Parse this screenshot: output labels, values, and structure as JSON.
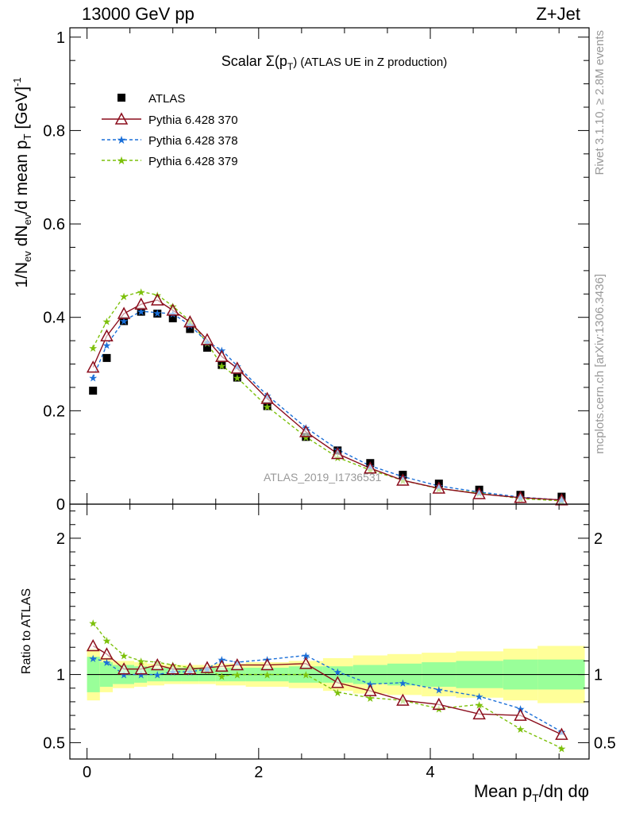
{
  "header": {
    "left": "13000 GeV pp",
    "right": "Z+Jet"
  },
  "side": {
    "rivet": "Rivet 3.1.10, ≥ 2.8M events",
    "mcplots": "mcplots.cern.ch [arXiv:1306.3436]"
  },
  "colors": {
    "atlas": "#000000",
    "p370": "#8b0d1c",
    "p378": "#1a6fd8",
    "p379": "#7cc00a",
    "band_inner": "#99ff99",
    "band_outer": "#ffff99"
  },
  "chart_data": [
    {
      "type": "scatter",
      "title": "Scalar Σ(pT) (ATLAS UE in Z production)",
      "title_parts": {
        "prefix": "Scalar Σ(p",
        "sub": "T",
        "suffix": ") (ATLAS UE in Z production)"
      },
      "ylabel": "1/Nev dNev/d mean pT [GeV]-1",
      "xlabel": "Mean pT/dη dφ",
      "analysis_label": "ATLAS_2019_I1736531",
      "xlim": [
        -0.2,
        5.85
      ],
      "ylim": [
        0,
        1.02
      ],
      "yticks": [
        "0",
        "0.2",
        "0.4",
        "0.6",
        "0.8",
        "1"
      ],
      "legend": [
        "ATLAS",
        "Pythia 6.428 370",
        "Pythia 6.428 378",
        "Pythia 6.428 379"
      ],
      "x": [
        0.07,
        0.23,
        0.43,
        0.63,
        0.82,
        1.0,
        1.2,
        1.4,
        1.57,
        1.75,
        2.1,
        2.55,
        2.92,
        3.3,
        3.68,
        4.1,
        4.57,
        5.05,
        5.53
      ],
      "series": [
        {
          "name": "ATLAS",
          "values": [
            0.243,
            0.313,
            0.392,
            0.412,
            0.408,
            0.398,
            0.375,
            0.335,
            0.298,
            0.271,
            0.21,
            0.144,
            0.115,
            0.088,
            0.063,
            0.044,
            0.031,
            0.02,
            0.016
          ]
        },
        {
          "name": "Pythia 6.428 370",
          "values": [
            0.293,
            0.36,
            0.408,
            0.428,
            0.437,
            0.415,
            0.39,
            0.352,
            0.316,
            0.291,
            0.226,
            0.155,
            0.108,
            0.077,
            0.051,
            0.034,
            0.022,
            0.014,
            0.009
          ]
        },
        {
          "name": "Pythia 6.428 378",
          "values": [
            0.271,
            0.341,
            0.393,
            0.413,
            0.41,
            0.408,
            0.383,
            0.347,
            0.33,
            0.296,
            0.233,
            0.164,
            0.117,
            0.082,
            0.059,
            0.039,
            0.026,
            0.015,
            0.009
          ]
        },
        {
          "name": "Pythia 6.428 379",
          "values": [
            0.335,
            0.392,
            0.445,
            0.455,
            0.448,
            0.424,
            0.392,
            0.345,
            0.297,
            0.271,
            0.209,
            0.144,
            0.1,
            0.073,
            0.051,
            0.033,
            0.024,
            0.012,
            0.007
          ]
        }
      ]
    },
    {
      "type": "line",
      "ylabel": "Ratio to ATLAS",
      "xlabel": "Mean pT/dη dφ",
      "xlim": [
        -0.2,
        5.85
      ],
      "ylim": [
        0.38,
        2.25
      ],
      "yticks": [
        "0.5",
        "1",
        "2"
      ],
      "xticks": [
        "0",
        "2",
        "4"
      ],
      "x": [
        0.07,
        0.23,
        0.43,
        0.63,
        0.82,
        1.0,
        1.2,
        1.4,
        1.57,
        1.75,
        2.1,
        2.55,
        2.92,
        3.3,
        3.68,
        4.1,
        4.57,
        5.05,
        5.53
      ],
      "x_edges": [
        0.0,
        0.15,
        0.3,
        0.55,
        0.7,
        0.9,
        1.1,
        1.3,
        1.5,
        1.65,
        1.85,
        2.35,
        2.75,
        3.1,
        3.5,
        3.9,
        4.3,
        4.85,
        5.25,
        5.8
      ],
      "band_inner": [
        0.13,
        0.09,
        0.07,
        0.06,
        0.05,
        0.05,
        0.05,
        0.05,
        0.05,
        0.05,
        0.05,
        0.06,
        0.06,
        0.07,
        0.08,
        0.09,
        0.1,
        0.11,
        0.11
      ],
      "band_outer": [
        0.19,
        0.13,
        0.1,
        0.09,
        0.08,
        0.07,
        0.07,
        0.07,
        0.08,
        0.08,
        0.09,
        0.1,
        0.12,
        0.14,
        0.15,
        0.16,
        0.17,
        0.19,
        0.21
      ],
      "series": [
        {
          "name": "Pythia 6.428 370",
          "values": [
            1.21,
            1.15,
            1.04,
            1.04,
            1.07,
            1.04,
            1.04,
            1.05,
            1.06,
            1.07,
            1.07,
            1.08,
            0.94,
            0.88,
            0.81,
            0.78,
            0.71,
            0.7,
            0.56
          ]
        },
        {
          "name": "Pythia 6.428 378",
          "values": [
            1.12,
            1.09,
            1.0,
            1.0,
            1.0,
            1.02,
            1.02,
            1.04,
            1.11,
            1.09,
            1.11,
            1.14,
            1.02,
            0.93,
            0.94,
            0.89,
            0.84,
            0.75,
            0.58
          ]
        },
        {
          "name": "Pythia 6.428 379",
          "values": [
            1.38,
            1.25,
            1.14,
            1.1,
            1.09,
            1.07,
            1.05,
            1.03,
            0.99,
            1.0,
            1.0,
            1.0,
            0.87,
            0.83,
            0.81,
            0.75,
            0.78,
            0.6,
            0.46
          ]
        }
      ]
    }
  ]
}
